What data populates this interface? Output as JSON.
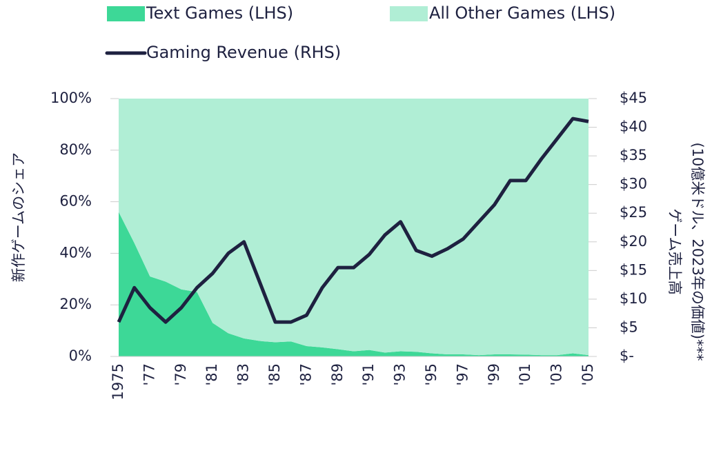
{
  "chart_data": {
    "type": "stacked-area-line",
    "categories": [
      "1975",
      null,
      "'77",
      null,
      "'79",
      null,
      "'81",
      null,
      "'83",
      null,
      "'85",
      null,
      "'87",
      null,
      "'89",
      null,
      "'91",
      null,
      "'93",
      null,
      "'95",
      null,
      "'97",
      null,
      "'99",
      null,
      "'01",
      null,
      "'03",
      null,
      "'05"
    ],
    "series": [
      {
        "name": "Text Games (LHS)",
        "color": "#3dd897",
        "kind": "area",
        "axis": "y",
        "values": [
          56,
          44,
          31,
          29,
          26,
          25,
          13,
          9,
          7,
          6,
          5.5,
          5.8,
          4,
          3.5,
          2.8,
          2,
          2.5,
          1.5,
          2,
          1.8,
          1.2,
          0.8,
          0.8,
          0.5,
          0.8,
          0.8,
          0.7,
          0.5,
          0.5,
          1.2,
          0.5
        ]
      },
      {
        "name": "All Other Games (LHS)",
        "color": "#b0eed5",
        "kind": "area",
        "axis": "y",
        "values": [
          44,
          56,
          69,
          71,
          74,
          75,
          87,
          91,
          93,
          94,
          94.5,
          94.2,
          96,
          96.5,
          97.2,
          98,
          97.5,
          98.5,
          98,
          98.2,
          98.8,
          99.2,
          99.2,
          99.5,
          99.2,
          99.2,
          99.3,
          99.5,
          99.5,
          98.8,
          99.5
        ]
      },
      {
        "name": "Gaming Revenue (RHS)",
        "color": "#1e2140",
        "kind": "line",
        "axis": "y2",
        "values": [
          6,
          12,
          8.5,
          6,
          8.5,
          12,
          14.5,
          18,
          20,
          13,
          6,
          6,
          7.2,
          12,
          15.5,
          15.5,
          17.8,
          21.2,
          23.5,
          18.5,
          17.5,
          18.8,
          20.5,
          23.5,
          26.5,
          30.7,
          30.7,
          34.5,
          38,
          41.5,
          41
        ]
      }
    ],
    "ylabel": "新作ゲームのシェア",
    "y2label": [
      "ゲーム売上高",
      "(10億米ドル、2023年の価値)***"
    ],
    "ylim": [
      0,
      100
    ],
    "yticks": [
      {
        "value": 0,
        "label": "0%"
      },
      {
        "value": 20,
        "label": "20%"
      },
      {
        "value": 40,
        "label": "40%"
      },
      {
        "value": 60,
        "label": "60%"
      },
      {
        "value": 80,
        "label": "80%"
      },
      {
        "value": 100,
        "label": "100%"
      }
    ],
    "y2lim": [
      0,
      45
    ],
    "y2ticks": [
      {
        "value": 0,
        "label": "$-"
      },
      {
        "value": 5,
        "label": "$5"
      },
      {
        "value": 10,
        "label": "$10"
      },
      {
        "value": 15,
        "label": "$15"
      },
      {
        "value": 20,
        "label": "$20"
      },
      {
        "value": 25,
        "label": "$25"
      },
      {
        "value": 30,
        "label": "$30"
      },
      {
        "value": 35,
        "label": "$35"
      },
      {
        "value": 40,
        "label": "$40"
      },
      {
        "value": 45,
        "label": "$45"
      }
    ]
  }
}
